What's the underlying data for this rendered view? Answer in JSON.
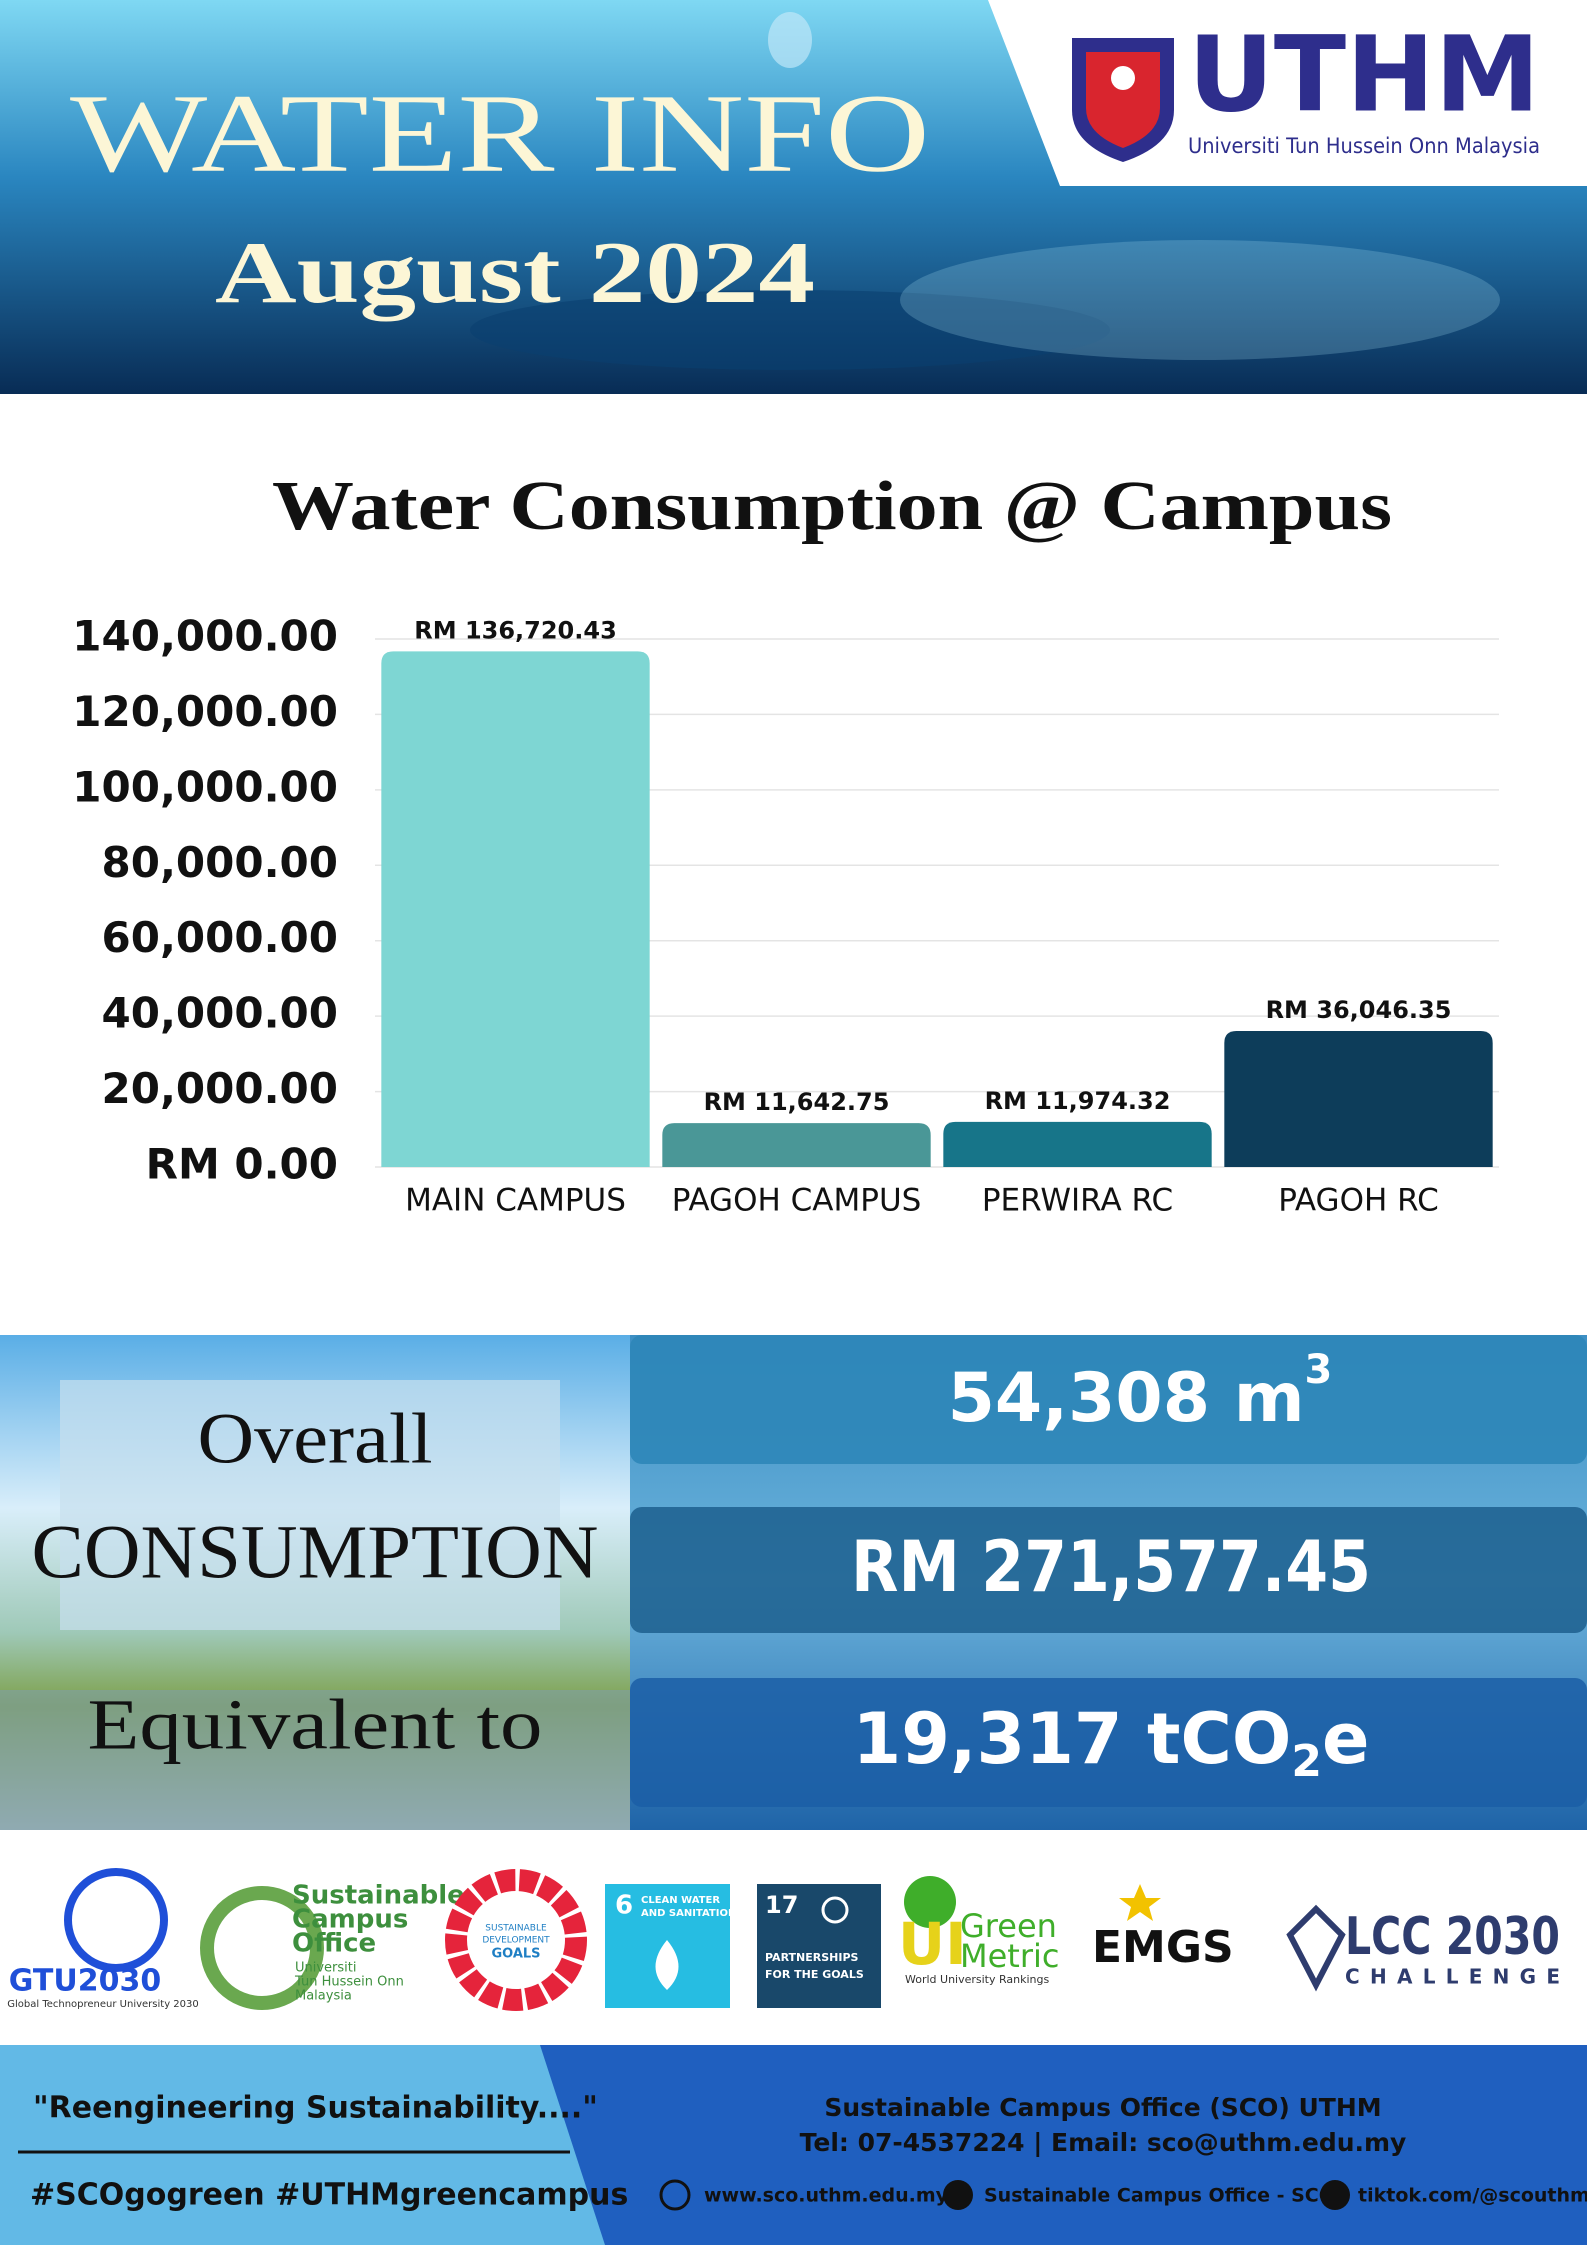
{
  "header": {
    "title": "WATER INFO",
    "subtitle": "August 2024",
    "logo": {
      "name": "UTHM",
      "tagline": "Universiti Tun Hussein Onn Malaysia"
    }
  },
  "chart_data": {
    "type": "bar",
    "title": "Water Consumption @ Campus",
    "categories": [
      "MAIN CAMPUS",
      "PAGOH CAMPUS",
      "PERWIRA RC",
      "PAGOH RC"
    ],
    "values": [
      136720.43,
      11642.75,
      11974.32,
      36046.35
    ],
    "value_labels": [
      "RM 136,720.43",
      "RM 11,642.75",
      "RM 11,974.32",
      "RM  36,046.35"
    ],
    "colors": [
      "#7ed6d3",
      "#4a9797",
      "#177589",
      "#0d3d5a"
    ],
    "ylim": [
      0,
      140000
    ],
    "yticks": [
      {
        "value": 0,
        "label": "RM   0.00"
      },
      {
        "value": 20000,
        "label": "20,000.00"
      },
      {
        "value": 40000,
        "label": "40,000.00"
      },
      {
        "value": 60000,
        "label": "60,000.00"
      },
      {
        "value": 80000,
        "label": "80,000.00"
      },
      {
        "value": 100000,
        "label": "100,000.00"
      },
      {
        "value": 120000,
        "label": "120,000.00"
      },
      {
        "value": 140000,
        "label": "140,000.00"
      }
    ],
    "grid": true
  },
  "summary": {
    "overall": "Overall",
    "consumption": "CONSUMPTION",
    "equivalent": "Equivalent to",
    "volume": {
      "text": "54,308 m",
      "sup": "3"
    },
    "cost": "RM 271,577.45",
    "carbon": {
      "text": "19,317 tCO",
      "sub": "2",
      "tail": "e"
    }
  },
  "logos": {
    "gtu": "GTU2030",
    "gtu_caption": "Global Technopreneur University 2030",
    "sco": [
      "Sustainable",
      "Campus",
      "Office"
    ],
    "sco_caption": [
      "Universiti",
      "Tun Hussein Onn",
      "Malaysia"
    ],
    "sdg": [
      "SUSTAINABLE",
      "DEVELOPMENT",
      "GOALS"
    ],
    "sdg6": {
      "number": "6",
      "text": [
        "CLEAN WATER",
        "AND SANITATION"
      ]
    },
    "sdg17": {
      "number": "17",
      "text": [
        "PARTNERSHIPS",
        "FOR THE GOALS"
      ]
    },
    "greenmetric": {
      "ui": "UI",
      "name": [
        "Green",
        "Metric"
      ],
      "caption": "World University Rankings"
    },
    "emgs": "EMGS",
    "lcc": {
      "name": "LCC 2030",
      "caption": "CHALLENGE"
    }
  },
  "footer": {
    "quote": "\"Reengineering Sustainability....\"",
    "hashtags": "#SCOgogreen #UTHMgreencampus",
    "office": "Sustainable Campus Office (SCO) UTHM",
    "contact": "Tel: 07-4537224 | Email: sco@uthm.edu.my",
    "website": "www.sco.uthm.edu.my",
    "facebook": "Sustainable Campus Office - SCO",
    "tiktok": "tiktok.com/@scouthm"
  }
}
